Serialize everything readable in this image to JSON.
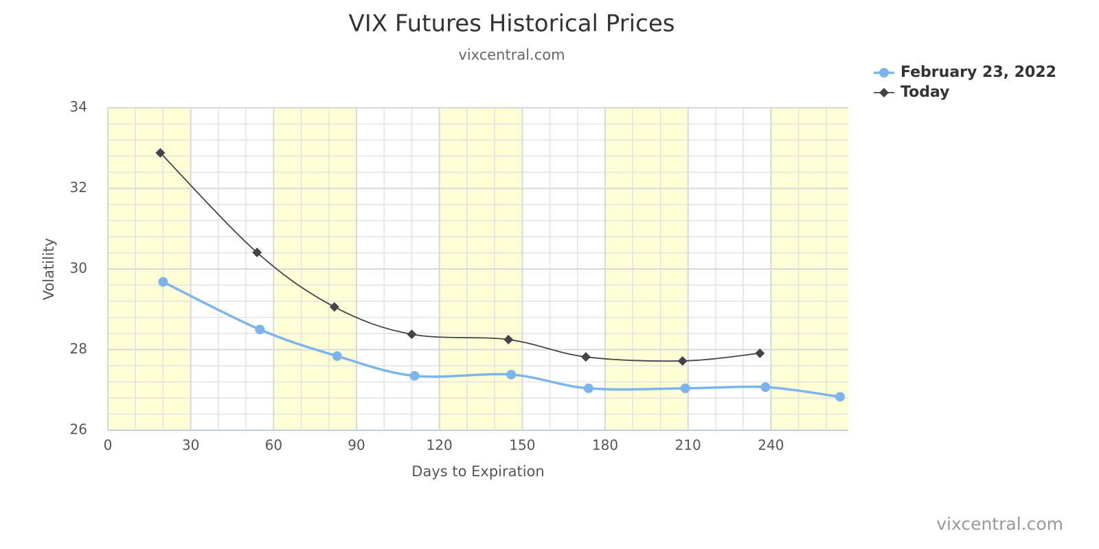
{
  "chart_data": {
    "type": "line",
    "title": "VIX Futures Historical Prices",
    "subtitle": "vixcentral.com",
    "credits": "vixcentral.com",
    "x_label": "Days to Expiration",
    "y_label": "Volatility",
    "series": [
      {
        "name": "February 23, 2022",
        "color": "#7cb5ec",
        "marker": "circle",
        "x": [
          20,
          55,
          83,
          111,
          146,
          174,
          209,
          238,
          265
        ],
        "values": [
          29.68,
          28.5,
          27.84,
          27.35,
          27.38,
          27.04,
          27.04,
          27.07,
          26.83
        ]
      },
      {
        "name": "Today",
        "color": "#434348",
        "marker": "diamond",
        "x": [
          19,
          54,
          82,
          110,
          145,
          173,
          208,
          236
        ],
        "values": [
          32.88,
          30.41,
          29.06,
          28.38,
          28.25,
          27.82,
          27.72,
          27.91
        ]
      }
    ],
    "xlim": [
      0,
      268
    ],
    "xticks": [
      0,
      30,
      60,
      90,
      120,
      150,
      180,
      210,
      240
    ],
    "ylim": [
      26,
      34
    ],
    "yticks": [
      26,
      28,
      30,
      32,
      34
    ],
    "xbands": [
      [
        0,
        30
      ],
      [
        60,
        90
      ],
      [
        120,
        150
      ],
      [
        180,
        210
      ],
      [
        240,
        268
      ]
    ],
    "band_color": "#ffffd6",
    "grid": true,
    "legend": "top-right"
  }
}
